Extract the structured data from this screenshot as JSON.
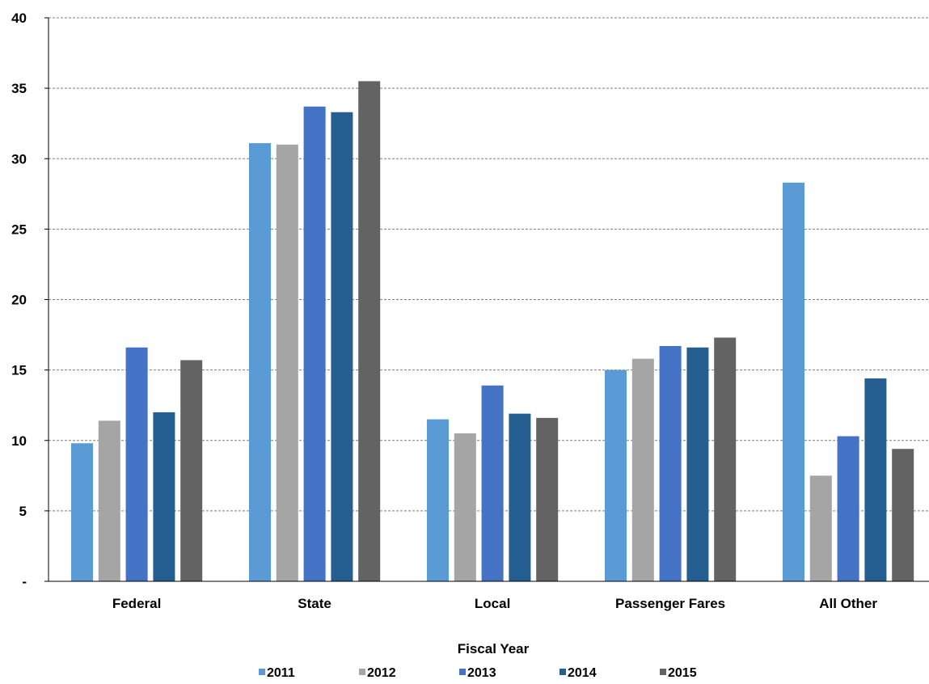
{
  "chart_data": {
    "type": "bar",
    "categories": [
      "Federal",
      "State",
      "Local",
      "Passenger Fares",
      "All Other"
    ],
    "series": [
      {
        "name": "2011",
        "color": "#5b9bd5",
        "values": [
          9.8,
          31.1,
          11.5,
          15.0,
          28.3
        ]
      },
      {
        "name": "2012",
        "color": "#a5a5a5",
        "values": [
          11.4,
          31.0,
          10.5,
          15.8,
          7.5
        ]
      },
      {
        "name": "2013",
        "color": "#4472c4",
        "values": [
          16.6,
          33.7,
          13.9,
          16.7,
          10.3
        ]
      },
      {
        "name": "2014",
        "color": "#255e91",
        "values": [
          12.0,
          33.3,
          11.9,
          16.6,
          14.4
        ]
      },
      {
        "name": "2015",
        "color": "#636363",
        "values": [
          15.7,
          35.5,
          11.6,
          17.3,
          9.4
        ]
      }
    ],
    "ylim": [
      0,
      40
    ],
    "yticks": [
      0,
      5,
      10,
      15,
      20,
      25,
      30,
      35,
      40
    ],
    "ytick_labels": [
      "-",
      "5",
      "10",
      "15",
      "20",
      "25",
      "30",
      "35",
      "40"
    ],
    "grid": true,
    "legend": {
      "title": "Fiscal Year",
      "position": "bottom"
    }
  }
}
